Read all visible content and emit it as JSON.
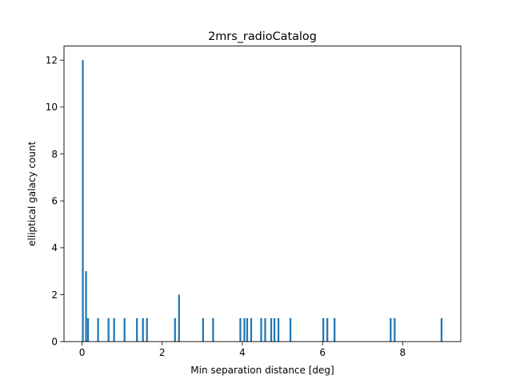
{
  "chart_data": {
    "type": "bar",
    "title": "2mrs_radioCatalog",
    "xlabel": "Min separation distance [deg]",
    "ylabel": "elliptical galacy count",
    "xlim": [
      -0.45,
      9.45
    ],
    "ylim": [
      0,
      12.6
    ],
    "xticks": [
      0,
      2,
      4,
      6,
      8
    ],
    "yticks": [
      0,
      2,
      4,
      6,
      8,
      10,
      12
    ],
    "bar_width": 0.045,
    "bar_color": "#1f77b4",
    "bars": [
      {
        "x": 0.02,
        "y": 12
      },
      {
        "x": 0.1,
        "y": 3
      },
      {
        "x": 0.15,
        "y": 1
      },
      {
        "x": 0.4,
        "y": 1
      },
      {
        "x": 0.66,
        "y": 1
      },
      {
        "x": 0.8,
        "y": 1
      },
      {
        "x": 1.06,
        "y": 1
      },
      {
        "x": 1.37,
        "y": 1
      },
      {
        "x": 1.52,
        "y": 1
      },
      {
        "x": 1.62,
        "y": 1
      },
      {
        "x": 2.32,
        "y": 1
      },
      {
        "x": 2.42,
        "y": 2
      },
      {
        "x": 3.02,
        "y": 1
      },
      {
        "x": 3.27,
        "y": 1
      },
      {
        "x": 3.95,
        "y": 1
      },
      {
        "x": 4.05,
        "y": 1
      },
      {
        "x": 4.12,
        "y": 1
      },
      {
        "x": 4.22,
        "y": 1
      },
      {
        "x": 4.47,
        "y": 1
      },
      {
        "x": 4.57,
        "y": 1
      },
      {
        "x": 4.72,
        "y": 1
      },
      {
        "x": 4.8,
        "y": 1
      },
      {
        "x": 4.9,
        "y": 1
      },
      {
        "x": 5.2,
        "y": 1
      },
      {
        "x": 6.02,
        "y": 1
      },
      {
        "x": 6.12,
        "y": 1
      },
      {
        "x": 6.3,
        "y": 1
      },
      {
        "x": 7.7,
        "y": 1
      },
      {
        "x": 7.8,
        "y": 1
      },
      {
        "x": 8.97,
        "y": 1
      }
    ]
  }
}
